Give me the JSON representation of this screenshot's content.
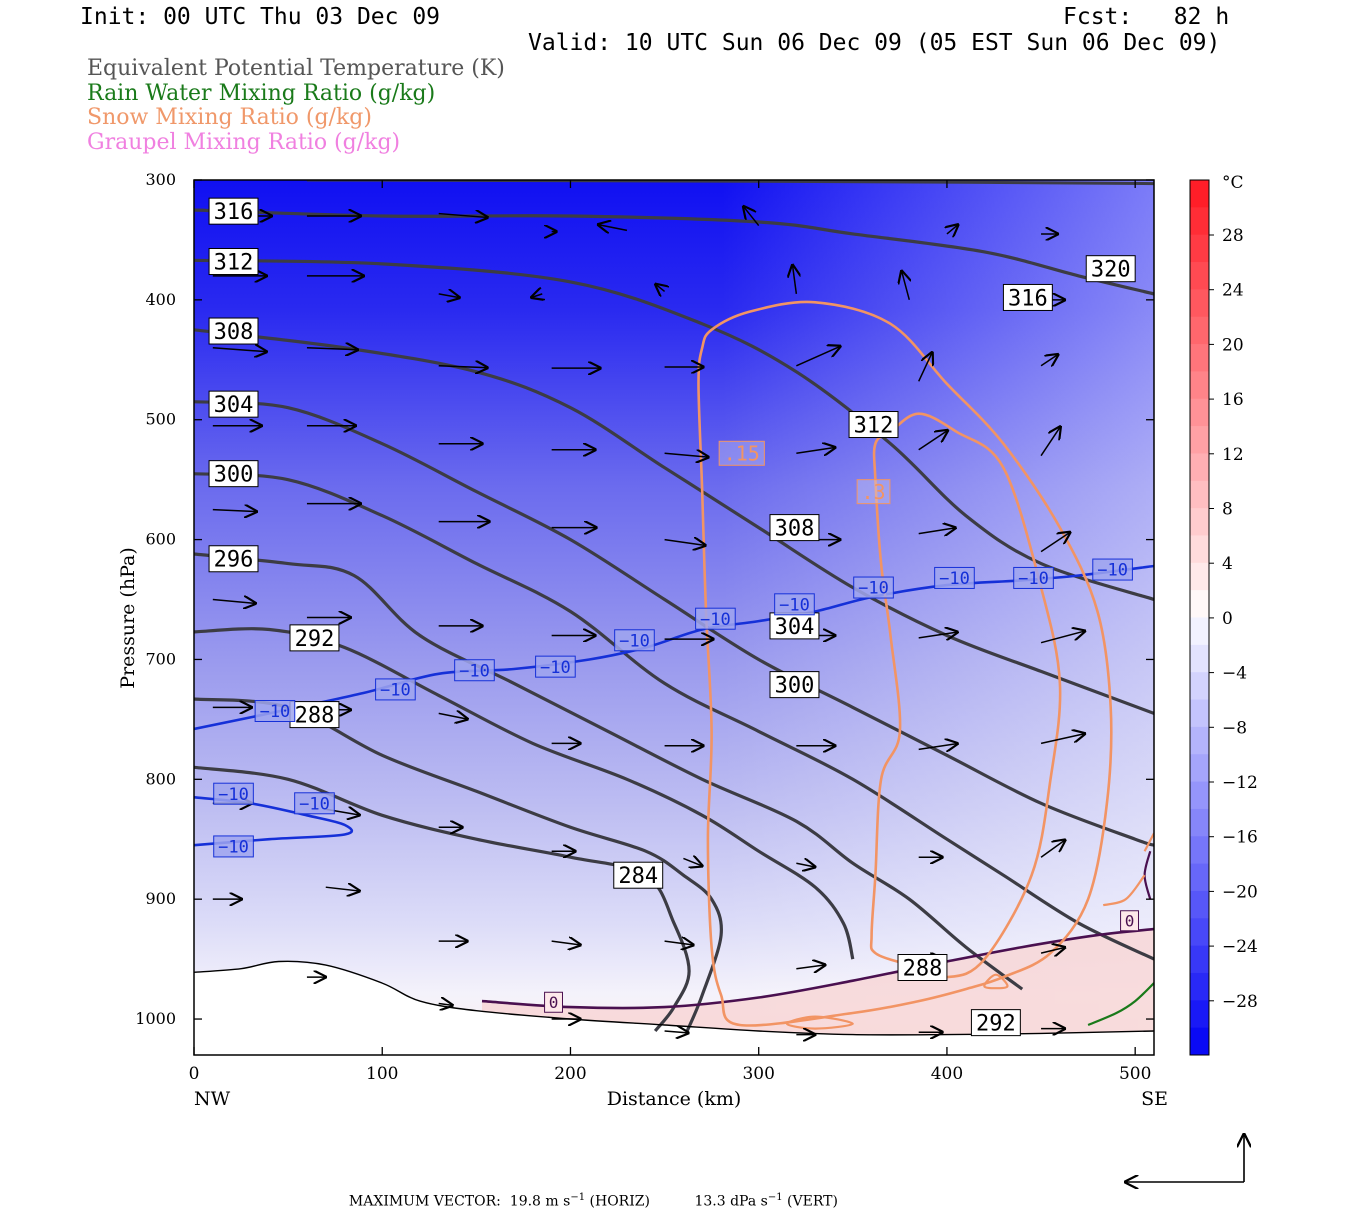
{
  "header": {
    "init": "Init: 00 UTC Thu 03 Dec 09",
    "fcst": "Fcst:   82 h",
    "valid": "Valid: 10 UTC Sun 06 Dec 09 (05 EST Sun 06 Dec 09)"
  },
  "legend": [
    {
      "label": "Equivalent Potential Temperature (K)",
      "color": "#555555"
    },
    {
      "label": "Rain Water Mixing Ratio (g/kg)",
      "color": "#1a7a1a"
    },
    {
      "label": "Snow Mixing Ratio (g/kg)",
      "color": "#f0986a"
    },
    {
      "label": "Graupel Mixing Ratio (g/kg)",
      "color": "#f080e0"
    }
  ],
  "chart_data": {
    "type": "cross-section contour",
    "ylabel": "Pressure (hPa)",
    "xlabel": "Distance (km)",
    "xlim": [
      0,
      510
    ],
    "ylim": [
      1030,
      300
    ],
    "x_ticks": [
      0,
      100,
      200,
      300,
      400,
      500
    ],
    "y_ticks": [
      300,
      400,
      500,
      600,
      700,
      800,
      900,
      1000
    ],
    "x_end_labels": {
      "left": "NW",
      "right": "SE"
    },
    "colorbar": {
      "unit": "°C",
      "ticks": [
        "28",
        "24",
        "20",
        "16",
        "12",
        "8",
        "4",
        "0",
        "−4",
        "−8",
        "−12",
        "−16",
        "−20",
        "−24",
        "−28"
      ]
    },
    "theta_e_contours": [
      {
        "label": "316",
        "points": [
          [
            0,
            325
          ],
          [
            100,
            330
          ],
          [
            200,
            330
          ],
          [
            300,
            335
          ],
          [
            350,
            345
          ],
          [
            420,
            360
          ],
          [
            470,
            380
          ],
          [
            510,
            395
          ]
        ]
      },
      {
        "label": "312",
        "points": [
          [
            0,
            367
          ],
          [
            100,
            370
          ],
          [
            200,
            385
          ],
          [
            270,
            420
          ],
          [
            320,
            460
          ],
          [
            370,
            520
          ],
          [
            410,
            580
          ],
          [
            450,
            620
          ],
          [
            510,
            650
          ]
        ]
      },
      {
        "label": "308",
        "points": [
          [
            0,
            425
          ],
          [
            80,
            440
          ],
          [
            150,
            460
          ],
          [
            200,
            490
          ],
          [
            250,
            540
          ],
          [
            300,
            590
          ],
          [
            350,
            640
          ],
          [
            400,
            680
          ],
          [
            450,
            710
          ],
          [
            510,
            745
          ]
        ]
      },
      {
        "label": "304",
        "points": [
          [
            0,
            485
          ],
          [
            50,
            490
          ],
          [
            100,
            520
          ],
          [
            150,
            560
          ],
          [
            200,
            600
          ],
          [
            250,
            650
          ],
          [
            300,
            700
          ],
          [
            350,
            740
          ],
          [
            400,
            780
          ],
          [
            450,
            820
          ],
          [
            500,
            850
          ],
          [
            510,
            855
          ]
        ]
      },
      {
        "label": "300",
        "points": [
          [
            0,
            545
          ],
          [
            50,
            550
          ],
          [
            100,
            580
          ],
          [
            150,
            620
          ],
          [
            200,
            660
          ],
          [
            250,
            720
          ],
          [
            300,
            760
          ],
          [
            350,
            800
          ],
          [
            400,
            850
          ],
          [
            430,
            880
          ],
          [
            470,
            920
          ],
          [
            510,
            950
          ]
        ]
      },
      {
        "label": "296",
        "points": [
          [
            0,
            612
          ],
          [
            50,
            620
          ],
          [
            85,
            630
          ],
          [
            120,
            680
          ],
          [
            170,
            720
          ],
          [
            220,
            760
          ],
          [
            270,
            800
          ],
          [
            320,
            835
          ],
          [
            350,
            870
          ],
          [
            380,
            900
          ],
          [
            410,
            940
          ],
          [
            440,
            975
          ]
        ]
      },
      {
        "label": "292",
        "points": [
          [
            0,
            677
          ],
          [
            40,
            675
          ],
          [
            80,
            690
          ],
          [
            130,
            730
          ],
          [
            180,
            770
          ],
          [
            230,
            800
          ],
          [
            270,
            830
          ],
          [
            300,
            860
          ],
          [
            330,
            890
          ],
          [
            345,
            920
          ],
          [
            350,
            950
          ]
        ]
      },
      {
        "label": "288",
        "points": [
          [
            0,
            733
          ],
          [
            50,
            740
          ],
          [
            100,
            780
          ],
          [
            150,
            810
          ],
          [
            200,
            840
          ],
          [
            240,
            860
          ],
          [
            260,
            880
          ],
          [
            275,
            900
          ],
          [
            280,
            930
          ],
          [
            270,
            980
          ],
          [
            262,
            1010
          ]
        ]
      },
      {
        "label": "284",
        "points": [
          [
            0,
            790
          ],
          [
            50,
            800
          ],
          [
            100,
            830
          ],
          [
            150,
            850
          ],
          [
            200,
            865
          ],
          [
            240,
            880
          ],
          [
            255,
            920
          ],
          [
            263,
            960
          ],
          [
            255,
            990
          ],
          [
            245,
            1010
          ]
        ]
      }
    ],
    "theta_e_labels": [
      {
        "text": "316",
        "x": 21,
        "p": 326
      },
      {
        "text": "312",
        "x": 21,
        "p": 368
      },
      {
        "text": "308",
        "x": 21,
        "p": 426
      },
      {
        "text": "304",
        "x": 21,
        "p": 487
      },
      {
        "text": "300",
        "x": 21,
        "p": 545
      },
      {
        "text": "296",
        "x": 21,
        "p": 616
      },
      {
        "text": "292",
        "x": 64,
        "p": 682
      },
      {
        "text": "288",
        "x": 64,
        "p": 746
      },
      {
        "text": "284",
        "x": 236,
        "p": 880
      },
      {
        "text": "308",
        "x": 319,
        "p": 590
      },
      {
        "text": "304",
        "x": 319,
        "p": 672
      },
      {
        "text": "300",
        "x": 319,
        "p": 721
      },
      {
        "text": "312",
        "x": 361,
        "p": 504
      },
      {
        "text": "316",
        "x": 443,
        "p": 398
      },
      {
        "text": "320",
        "x": 487,
        "p": 374
      },
      {
        "text": "288",
        "x": 387,
        "p": 957
      },
      {
        "text": "292",
        "x": 426,
        "p": 1003
      }
    ],
    "isotherm_minus10": {
      "points": [
        [
          0,
          758
        ],
        [
          40,
          745
        ],
        [
          90,
          728
        ],
        [
          130,
          712
        ],
        [
          170,
          708
        ],
        [
          210,
          700
        ],
        [
          240,
          690
        ],
        [
          270,
          675
        ],
        [
          300,
          668
        ],
        [
          330,
          660
        ],
        [
          360,
          648
        ],
        [
          400,
          638
        ],
        [
          440,
          634
        ],
        [
          470,
          630
        ],
        [
          510,
          622
        ]
      ],
      "lower_branch": [
        [
          0,
          855
        ],
        [
          40,
          850
        ],
        [
          80,
          846
        ],
        [
          80,
          838
        ],
        [
          60,
          830
        ],
        [
          30,
          820
        ],
        [
          0,
          815
        ]
      ],
      "labels": [
        {
          "text": "−10",
          "x": 43,
          "p": 743
        },
        {
          "text": "−10",
          "x": 107,
          "p": 725
        },
        {
          "text": "−10",
          "x": 149,
          "p": 709
        },
        {
          "text": "−10",
          "x": 192,
          "p": 706
        },
        {
          "text": "−10",
          "x": 234,
          "p": 684
        },
        {
          "text": "−10",
          "x": 277,
          "p": 666
        },
        {
          "text": "−10",
          "x": 319,
          "p": 654
        },
        {
          "text": "−10",
          "x": 361,
          "p": 640
        },
        {
          "text": "−10",
          "x": 404,
          "p": 632
        },
        {
          "text": "−10",
          "x": 446,
          "p": 632
        },
        {
          "text": "−10",
          "x": 488,
          "p": 625
        },
        {
          "text": "−10",
          "x": 21,
          "p": 812
        },
        {
          "text": "−10",
          "x": 64,
          "p": 820
        },
        {
          "text": "−10",
          "x": 21,
          "p": 856
        }
      ]
    },
    "isotherm_zero": {
      "points": [
        [
          153,
          985
        ],
        [
          200,
          990
        ],
        [
          250,
          990
        ],
        [
          300,
          982
        ],
        [
          350,
          968
        ],
        [
          400,
          952
        ],
        [
          440,
          940
        ],
        [
          480,
          930
        ],
        [
          510,
          925
        ]
      ],
      "labels": [
        {
          "text": "0",
          "x": 191,
          "p": 986
        },
        {
          "text": "0",
          "x": 497,
          "p": 918
        }
      ]
    },
    "snow_contours": [
      {
        "label": ".15",
        "points": [
          [
            290,
            1005
          ],
          [
            280,
            980
          ],
          [
            275,
            940
          ],
          [
            273,
            850
          ],
          [
            275,
            760
          ],
          [
            272,
            660
          ],
          [
            270,
            560
          ],
          [
            268,
            470
          ],
          [
            270,
            440
          ],
          [
            275,
            425
          ],
          [
            295,
            410
          ],
          [
            330,
            402
          ],
          [
            370,
            420
          ],
          [
            400,
            470
          ],
          [
            430,
            520
          ],
          [
            460,
            590
          ],
          [
            480,
            660
          ],
          [
            487,
            740
          ],
          [
            485,
            820
          ],
          [
            475,
            900
          ],
          [
            455,
            945
          ],
          [
            430,
            965
          ],
          [
            410,
            975
          ],
          [
            385,
            985
          ],
          [
            350,
            995
          ]
        ]
      },
      {
        "label": ".3",
        "points": [
          [
            360,
            930
          ],
          [
            362,
            880
          ],
          [
            365,
            800
          ],
          [
            375,
            760
          ],
          [
            370,
            680
          ],
          [
            365,
            620
          ],
          [
            362,
            550
          ],
          [
            362,
            520
          ],
          [
            370,
            510
          ],
          [
            385,
            495
          ],
          [
            405,
            510
          ],
          [
            430,
            540
          ],
          [
            450,
            640
          ],
          [
            460,
            720
          ],
          [
            455,
            800
          ],
          [
            445,
            880
          ],
          [
            420,
            950
          ],
          [
            400,
            965
          ],
          [
            380,
            955
          ],
          [
            362,
            945
          ]
        ]
      }
    ],
    "snow_labels": [
      {
        "text": ".15",
        "x": 291,
        "p": 528
      },
      {
        "text": ".3",
        "x": 361,
        "p": 560
      }
    ],
    "rain_contours": [
      {
        "points": [
          [
            475,
            1005
          ],
          [
            490,
            995
          ],
          [
            500,
            985
          ],
          [
            510,
            970
          ]
        ]
      }
    ],
    "terrain": [
      [
        0,
        961
      ],
      [
        25,
        958
      ],
      [
        45,
        952
      ],
      [
        70,
        955
      ],
      [
        100,
        970
      ],
      [
        120,
        985
      ],
      [
        150,
        993
      ],
      [
        200,
        1000
      ],
      [
        250,
        1005
      ],
      [
        300,
        1010
      ],
      [
        350,
        1013
      ],
      [
        400,
        1013
      ],
      [
        450,
        1012
      ],
      [
        510,
        1010
      ]
    ],
    "max_vector": {
      "text": "MAXIMUM VECTOR:  19.8 m s",
      "horiz": "(HORIZ)",
      "vert_value": "13.3 dPa s",
      "vert": "(VERT)",
      "exp": "−1"
    }
  }
}
